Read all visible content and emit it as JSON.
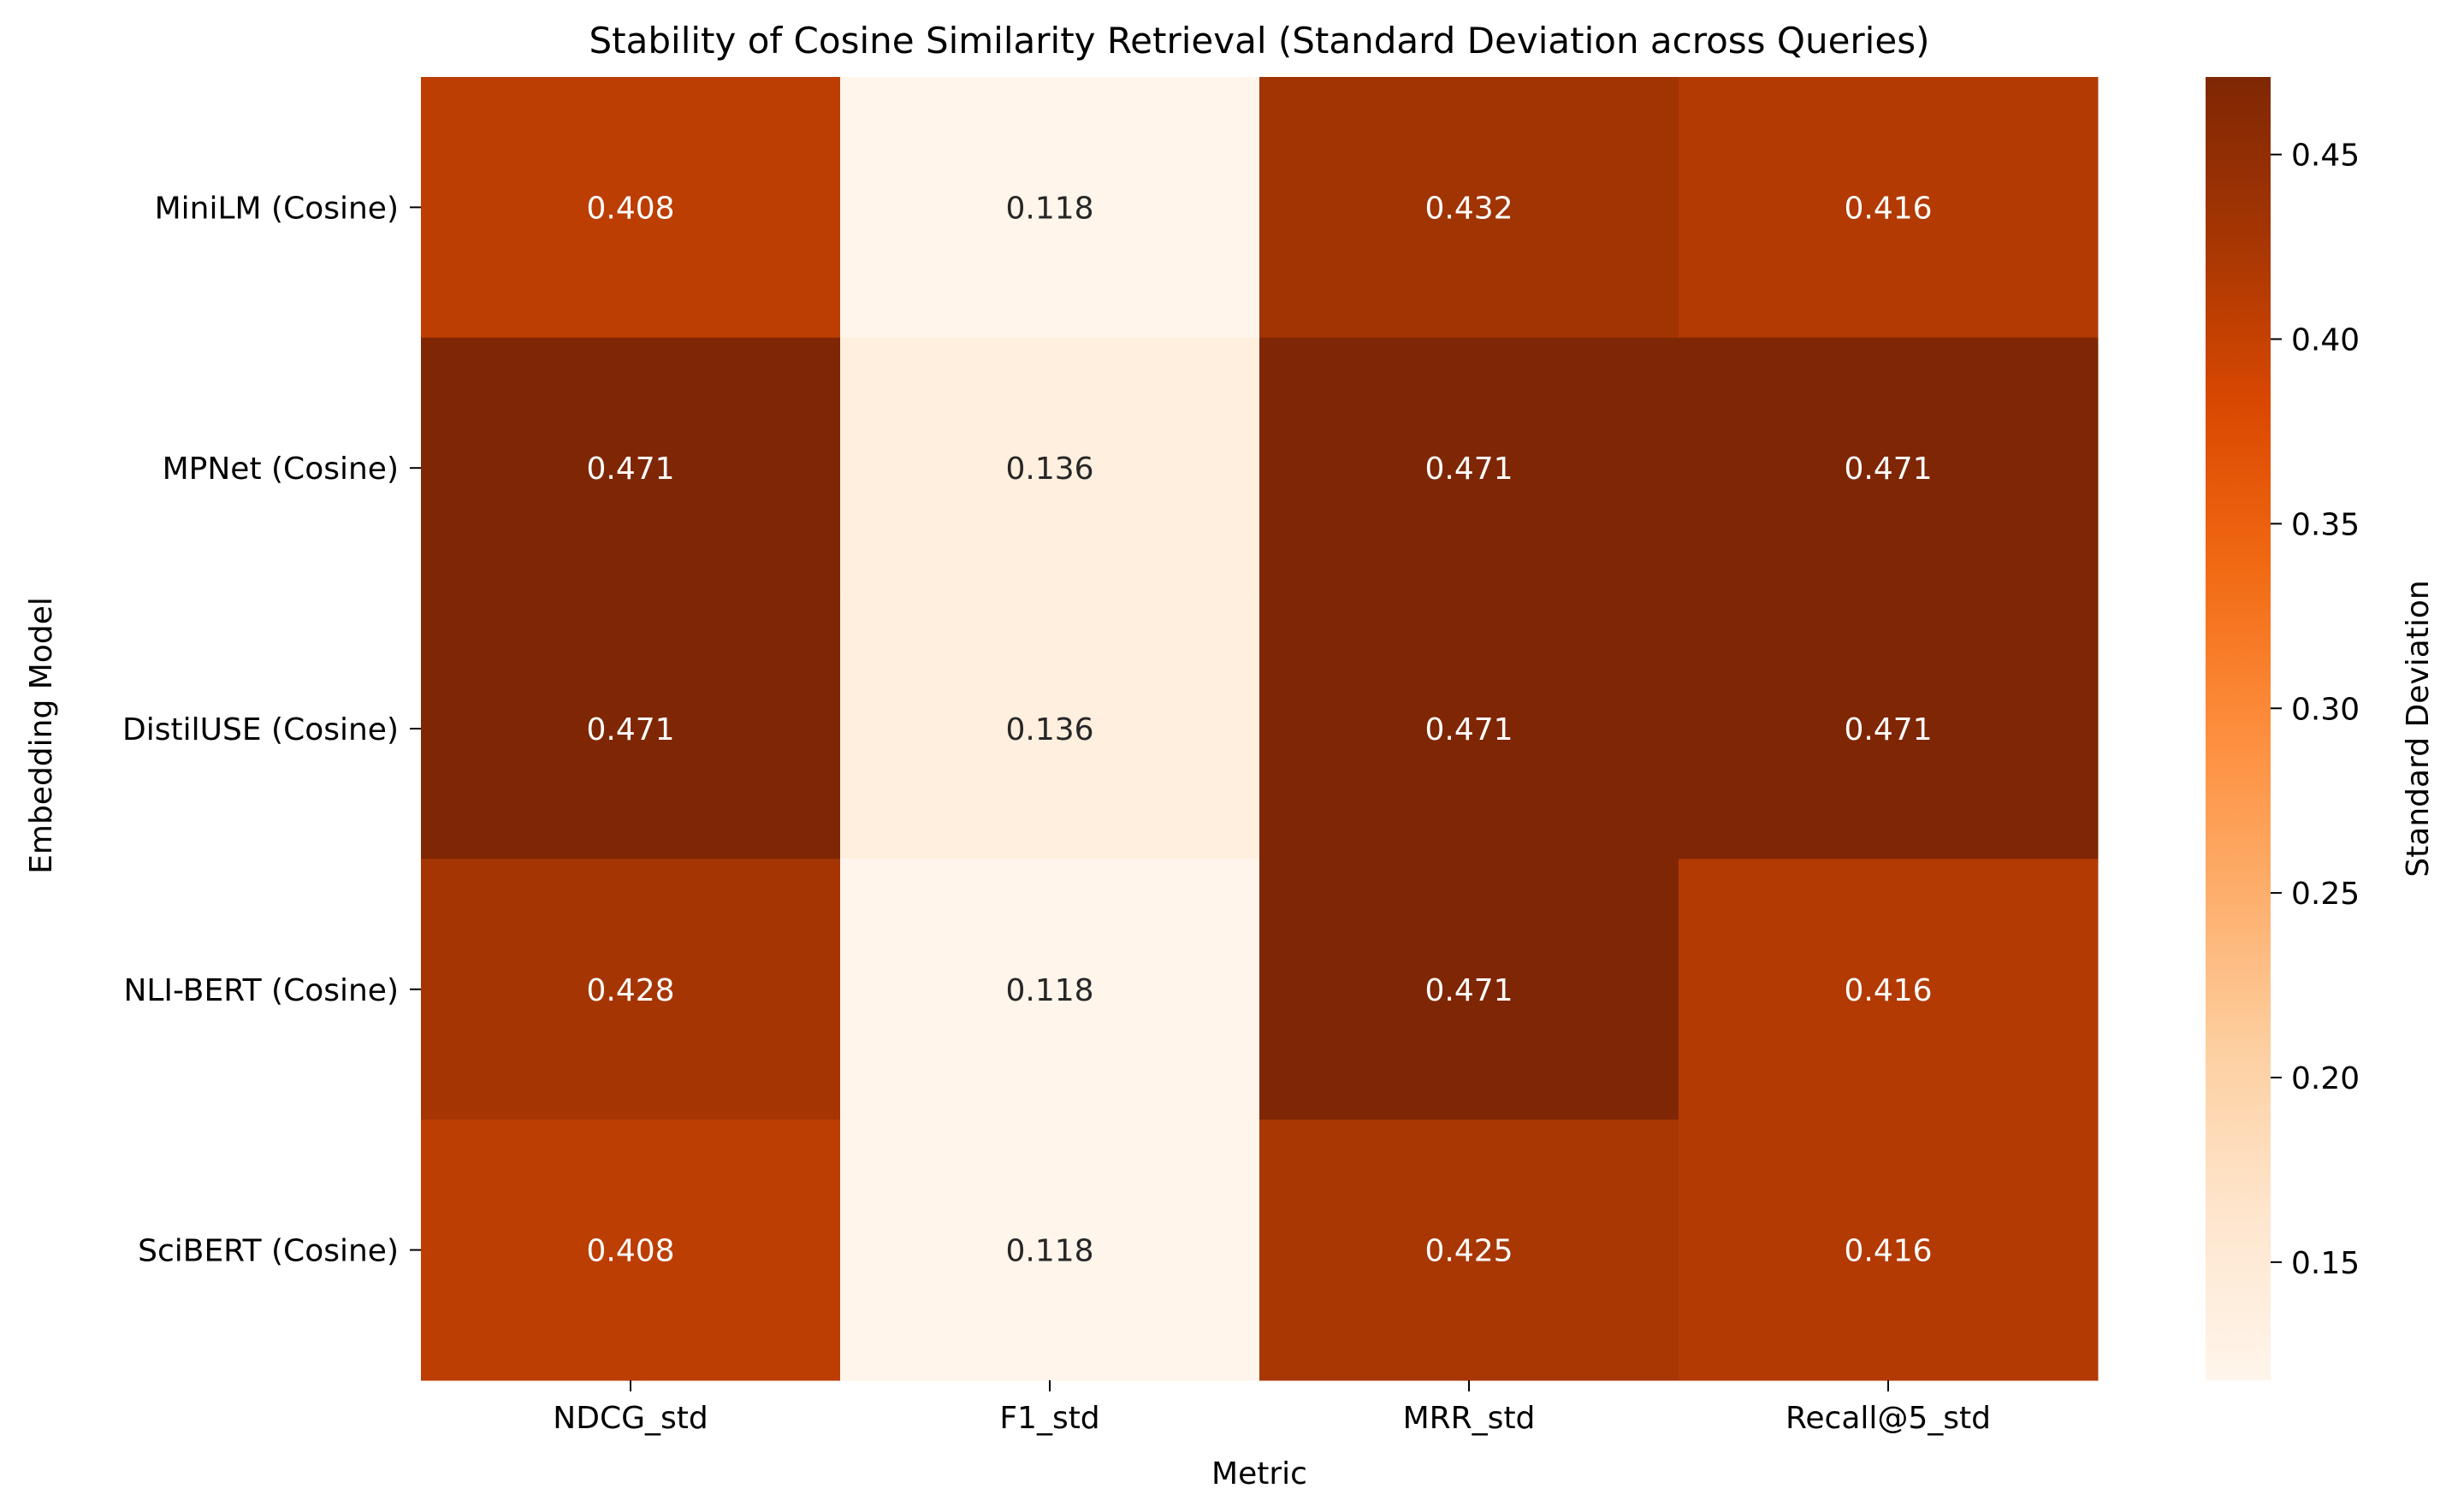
{
  "chart_data": {
    "type": "heatmap",
    "title": "Stability of Cosine Similarity Retrieval (Standard Deviation across Queries)",
    "xlabel": "Metric",
    "ylabel": "Embedding Model",
    "columns": [
      "NDCG_std",
      "F1_std",
      "MRR_std",
      "Recall@5_std"
    ],
    "rows": [
      "MiniLM (Cosine)",
      "MPNet (Cosine)",
      "DistilUSE (Cosine)",
      "NLI-BERT (Cosine)",
      "SciBERT (Cosine)"
    ],
    "values": [
      [
        0.408,
        0.118,
        0.432,
        0.416
      ],
      [
        0.471,
        0.136,
        0.471,
        0.471
      ],
      [
        0.471,
        0.136,
        0.471,
        0.471
      ],
      [
        0.428,
        0.118,
        0.471,
        0.416
      ],
      [
        0.408,
        0.118,
        0.425,
        0.416
      ]
    ],
    "value_format": "0.000",
    "colormap": "Oranges",
    "vmin": 0.118,
    "vmax": 0.471,
    "colorbar": {
      "label": "Standard Deviation",
      "ticks": [
        0.15,
        0.2,
        0.25,
        0.3,
        0.35,
        0.4,
        0.45
      ],
      "tick_labels": [
        "0.15",
        "0.20",
        "0.25",
        "0.30",
        "0.35",
        "0.40",
        "0.45"
      ]
    },
    "annotation_colors": {
      "light": "#ffffff",
      "dark": "#262626"
    }
  }
}
